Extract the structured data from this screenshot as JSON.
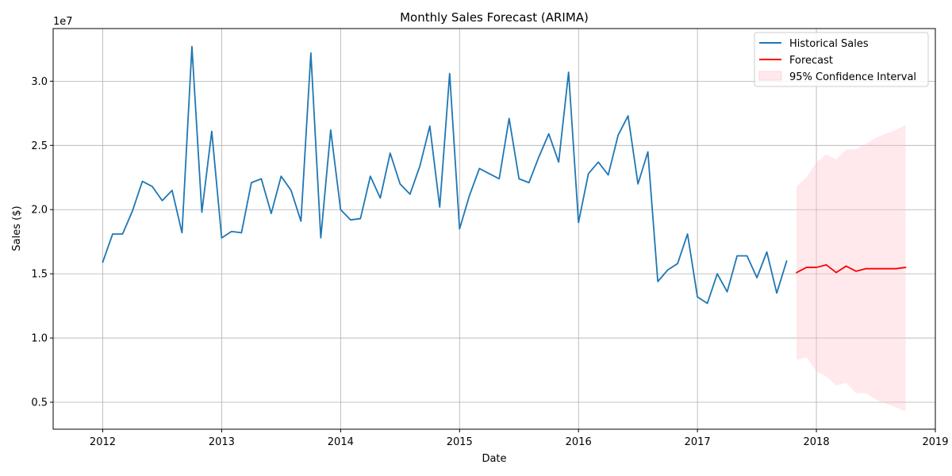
{
  "chart_data": {
    "type": "line",
    "title": "Monthly Sales Forecast (ARIMA)",
    "xlabel": "Date",
    "ylabel": "Sales ($)",
    "y_offset_text": "1e7",
    "xlim": [
      "2011-08",
      "2019-01"
    ],
    "ylim": [
      0.29,
      3.41
    ],
    "y_ticks": [
      0.5,
      1.0,
      1.5,
      2.0,
      2.5,
      3.0
    ],
    "y_tick_labels": [
      "0.5",
      "1.0",
      "1.5",
      "2.0",
      "2.5",
      "3.0"
    ],
    "x_ticks": [
      "2012-01",
      "2013-01",
      "2014-01",
      "2015-01",
      "2016-01",
      "2017-01",
      "2018-01",
      "2019-01"
    ],
    "x_tick_labels": [
      "2012",
      "2013",
      "2014",
      "2015",
      "2016",
      "2017",
      "2018",
      "2019"
    ],
    "grid": true,
    "legend_position": "top-right",
    "series": [
      {
        "name": "Historical Sales",
        "color": "#1f77b4",
        "x": [
          "2012-01",
          "2012-02",
          "2012-03",
          "2012-04",
          "2012-05",
          "2012-06",
          "2012-07",
          "2012-08",
          "2012-09",
          "2012-10",
          "2012-11",
          "2012-12",
          "2013-01",
          "2013-02",
          "2013-03",
          "2013-04",
          "2013-05",
          "2013-06",
          "2013-07",
          "2013-08",
          "2013-09",
          "2013-10",
          "2013-11",
          "2013-12",
          "2014-01",
          "2014-02",
          "2014-03",
          "2014-04",
          "2014-05",
          "2014-06",
          "2014-07",
          "2014-08",
          "2014-09",
          "2014-10",
          "2014-11",
          "2014-12",
          "2015-01",
          "2015-02",
          "2015-03",
          "2015-04",
          "2015-05",
          "2015-06",
          "2015-07",
          "2015-08",
          "2015-09",
          "2015-10",
          "2015-11",
          "2015-12",
          "2016-01",
          "2016-02",
          "2016-03",
          "2016-04",
          "2016-05",
          "2016-06",
          "2016-07",
          "2016-08",
          "2016-09",
          "2016-10",
          "2016-11",
          "2016-12",
          "2017-01",
          "2017-02",
          "2017-03",
          "2017-04",
          "2017-05",
          "2017-06",
          "2017-07",
          "2017-08",
          "2017-09",
          "2017-10"
        ],
        "values": [
          1.59,
          1.81,
          1.81,
          1.99,
          2.22,
          2.18,
          2.07,
          2.15,
          1.82,
          3.27,
          1.98,
          2.61,
          1.78,
          1.83,
          1.82,
          2.21,
          2.24,
          1.97,
          2.26,
          2.15,
          1.91,
          3.22,
          1.78,
          2.62,
          2.0,
          1.92,
          1.93,
          2.26,
          2.09,
          2.44,
          2.2,
          2.12,
          2.34,
          2.65,
          2.02,
          3.06,
          1.85,
          2.11,
          2.32,
          2.28,
          2.24,
          2.71,
          2.24,
          2.21,
          2.41,
          2.59,
          2.37,
          3.07,
          1.9,
          2.28,
          2.37,
          2.27,
          2.58,
          2.73,
          2.2,
          2.45,
          1.44,
          1.53,
          1.58,
          1.81,
          1.32,
          1.27,
          1.5,
          1.36,
          1.64,
          1.64,
          1.47,
          1.67,
          1.35,
          1.6
        ]
      },
      {
        "name": "Forecast",
        "color": "#ff0000",
        "x": [
          "2017-11",
          "2017-12",
          "2018-01",
          "2018-02",
          "2018-03",
          "2018-04",
          "2018-05",
          "2018-06",
          "2018-07",
          "2018-08",
          "2018-09",
          "2018-10"
        ],
        "values": [
          1.51,
          1.55,
          1.55,
          1.57,
          1.51,
          1.56,
          1.52,
          1.54,
          1.54,
          1.54,
          1.54,
          1.55
        ]
      }
    ],
    "confidence_interval": {
      "name": "95% Confidence Interval",
      "color": "#ffc0cb",
      "x": [
        "2017-11",
        "2017-12",
        "2018-01",
        "2018-02",
        "2018-03",
        "2018-04",
        "2018-05",
        "2018-06",
        "2018-07",
        "2018-08",
        "2018-09",
        "2018-10"
      ],
      "lower": [
        0.83,
        0.85,
        0.74,
        0.7,
        0.63,
        0.65,
        0.57,
        0.57,
        0.52,
        0.49,
        0.46,
        0.43
      ],
      "upper": [
        2.18,
        2.25,
        2.37,
        2.43,
        2.39,
        2.47,
        2.47,
        2.51,
        2.56,
        2.59,
        2.62,
        2.66
      ]
    }
  }
}
